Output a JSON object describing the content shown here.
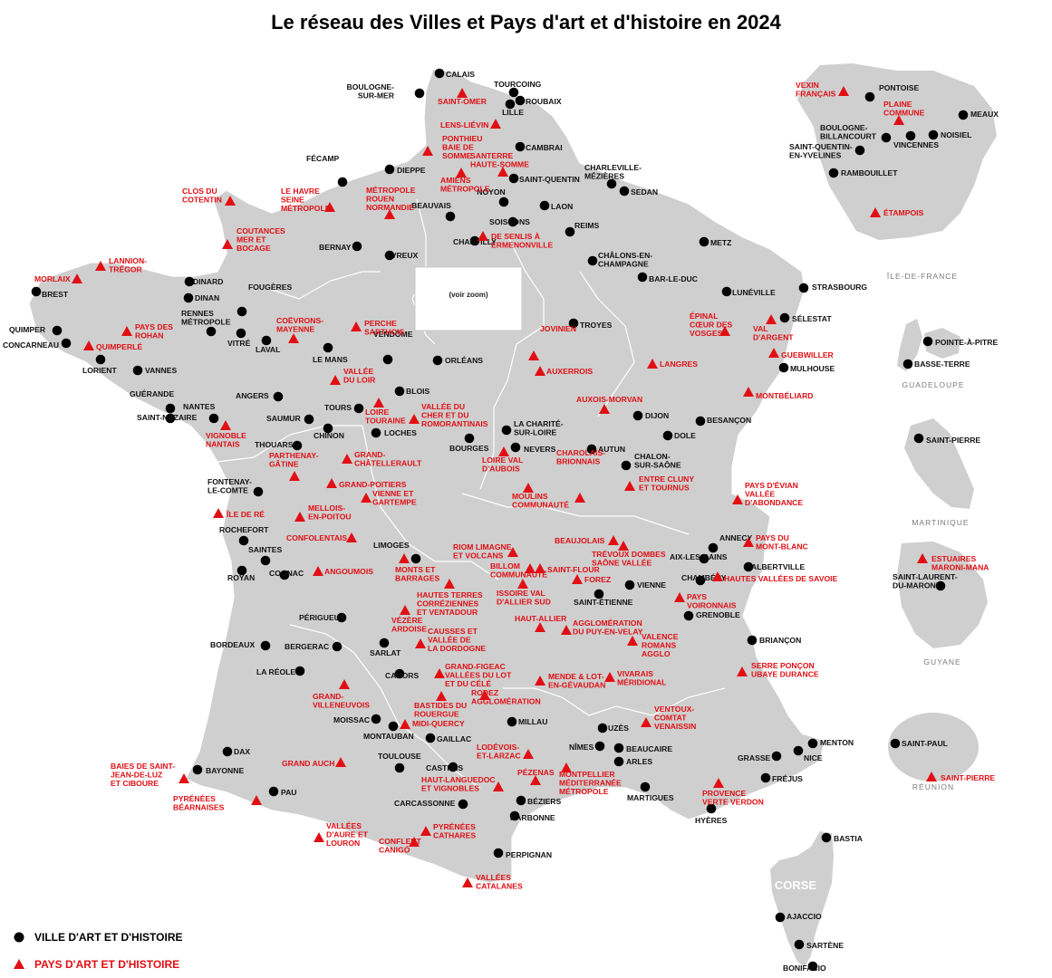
{
  "title": "Le réseau des Villes et Pays d'art et d'histoire en 2024",
  "colors": {
    "land": "#cfcfcf",
    "border": "#ffffff",
    "city": "#000000",
    "pays": "#e10f14",
    "water": "#ffffff"
  },
  "legend": {
    "city": "VILLE D'ART ET D'HISTOIRE",
    "pays": "PAYS D'ART ET D'HISTOIRE"
  },
  "zoom": {
    "title": "ÎLE-DE-FRANCE",
    "subtitle": "(voir zoom)"
  },
  "region_labels": {
    "idf": "ÎLE-DE-FRANCE",
    "guadeloupe": "GUADELOUPE",
    "martinique": "MARTINIQUE",
    "guyane": "GUYANE",
    "reunion": "RÉUNION",
    "corse": "CORSE"
  },
  "villes": [
    "CALAIS",
    "BOULOGNE-\nSUR-MER",
    "TOURCOING",
    "ROUBAIX",
    "LILLE",
    "CAMBRAI",
    "SAINT-QUENTIN",
    "CHARLEVILLE-\nMÉZIÈRES",
    "SEDAN",
    "FÉCAMP",
    "DIEPPE",
    "NOYON",
    "LAON",
    "BEAUVAIS",
    "SOISSONS",
    "REIMS",
    "CHANTILLY",
    "METZ",
    "BERNAY",
    "ÉVREUX",
    "CHÂLONS-EN-\nCHAMPAGNE",
    "BAR-LE-DUC",
    "STRASBOURG",
    "LUNÉVILLE",
    "DINARD",
    "BREST",
    "DINAN",
    "FOUGÈRES",
    "RENNES\nMÉTROPOLE",
    "QUIMPER",
    "CONCARNEAU",
    "VITRÉ",
    "LAVAL",
    "TROYES",
    "SÉLESTAT",
    "LORIENT",
    "VANNES",
    "LE MANS",
    "VENDÔME",
    "ORLÉANS",
    "MULHOUSE",
    "ANGERS",
    "GUÉRANDE",
    "SAINT-NAZAIRE",
    "NANTES",
    "SAUMUR",
    "TOURS",
    "BLOIS",
    "DIJON",
    "BESANÇON",
    "CHINON",
    "LOCHES",
    "LA CHARITÉ-\nSUR-LOIRE",
    "THOUARS",
    "BOURGES",
    "NEVERS",
    "DOLE",
    "AUTUN",
    "CHALON-\nSUR-SAÔNE",
    "FONTENAY-\nLE-COMTE",
    "ROCHEFORT",
    "SAINTES",
    "ROYAN",
    "COGNAC",
    "LIMOGES",
    "ANNECY",
    "AIX-LES-BAINS",
    "ALBERTVILLE",
    "CHAMBÉRY",
    "VIENNE",
    "SAINT-ÉTIENNE",
    "GRENOBLE",
    "PÉRIGUEUX",
    "BORDEAUX",
    "BERGERAC",
    "SARLAT",
    "BRIANÇON",
    "LA RÉOLE",
    "CAHORS",
    "MOISSAC",
    "MONTAUBAN",
    "MILLAU",
    "UZÈS",
    "GAILLAC",
    "DAX",
    "NÎMES",
    "BEAUCAIRE",
    "ARLES",
    "MENTON",
    "NICE",
    "GRASSE",
    "BAYONNE",
    "TOULOUSE",
    "CASTRES",
    "FRÉJUS",
    "PAU",
    "MARTIGUES",
    "BÉZIERS",
    "CARCASSONNE",
    "NARBONNE",
    "HYÈRES",
    "PERPIGNAN",
    "BASTIA",
    "AJACCIO",
    "SARTÈNE",
    "BONIFACIO",
    "PONTOISE",
    "MEAUX",
    "BOULOGNE-\nBILLANCOURT",
    "VINCENNES",
    "NOISIEL",
    "SAINT-QUENTIN-\nEN-YVELINES",
    "RAMBOUILLET",
    "POINTE-À-PITRE",
    "BASSE-TERRE",
    "SAINT-PIERRE",
    "SAINT-LAURENT-\nDU-MARONI",
    "SAINT-PAUL"
  ],
  "pays": [
    "SAINT-OMER",
    "LENS-LIÉVIN",
    "PONTHIEU\nBAIE DE\nSOMME",
    "SANTERRE\nHAUTE-SOMME",
    "AMIENS\nMÉTROPOLE",
    "MÉTROPOLE\nROUEN\nNORMANDIE",
    "LE HAVRE\nSEINE\nMÉTROPOLE",
    "CLOS DU\nCOTENTIN",
    "DE SENLIS À\nERMENONVILLE",
    "COUTANCES\nMER ET\nBOCAGE",
    "LANNION-\nTRÉGOR",
    "MORLAIX",
    "PAYS DES\nROHAN",
    "QUIMPERLÉ",
    "COËVRONS-\nMAYENNE",
    "PERCHE\nSARTHOIS",
    "ÉPINAL\nCŒUR DES\nVOSGES",
    "VAL\nD'ARGENT",
    "JOVINIEN",
    "AUXERROIS",
    "LANGRES",
    "GUEBWILLER",
    "VALLÉE\nDU LOIR",
    "MONTBÉLIARD",
    "AUXOIS-MORVAN",
    "LOIRE\nTOURAINE",
    "VALLÉE DU\nCHER ET DU\nROMORANTINAIS",
    "VIGNOBLE\nNANTAIS",
    "LOIRE VAL\nD'AUBOIS",
    "CHAROLAIS-\nBRIONNAIS",
    "PARTHENAY-\nGÂTINE",
    "GRAND-\nCHÂTELLERAULT",
    "ENTRE CLUNY\nET TOURNUS",
    "GRAND-POITIERS",
    "VIENNE ET\nGARTEMPE",
    "MOULINS\nCOMMUNAUTÉ",
    "PAYS D'ÉVIAN\nVALLÉE\nD'ABONDANCE",
    "ÎLE DE RÉ",
    "MELLOIS-\nEN-POITOU",
    "CONFOLENTAIS",
    "BEAUJOLAIS",
    "TRÉVOUX DOMBES\nSAÔNE VALLÉE",
    "PAYS DU\nMONT-BLANC",
    "RIOM LIMAGNE\nET VOLCANS",
    "BILLOM\nCOMMUNAUTÉ",
    "SAINT-FLOUR",
    "ANGOUMOIS",
    "MONTS ET\nBARRAGES",
    "FOREZ",
    "HAUTES VALLÉES DE SAVOIE",
    "HAUTES TERRES\nCORRÉZIENNES\nET VENTADOUR",
    "ISSOIRE VAL\nD'ALLIER SUD",
    "PAYS\nVOIRONNAIS",
    "VÉZÈRE\nARDOISE",
    "HAUT-ALLIER",
    "AGGLOMÉRATION\nDU PUY-EN-VELAY",
    "CAUSSES ET\nVALLÉE DE\nLA DORDOGNE",
    "VALENCE\nROMANS\nAGGLO",
    "GRAND-FIGEAC\nVALLÉES DU LOT\nET DU CÉLÉ",
    "SERRE PONÇON\nUBAYE DURANCE",
    "GRAND-\nVILLENEUVOIS",
    "MENDE & LOT-\nEN-GÉVAUDAN",
    "VIVARAIS\nMÉRIDIONAL",
    "RODEZ\nAGGLOMÉRATION",
    "BASTIDES DU\nROUERGUE",
    "MIDI-QUERCY",
    "VENTOUX-\nCOMTAT\nVENAISSIN",
    "LODÉVOIS-\nET-LARZAC",
    "GRAND AUCH",
    "BAIES DE SAINT-\nJEAN-DE-LUZ\nET CIBOURE",
    "PÉZENAS",
    "MONTPELLIER\nMÉDITERRANÉE\nMÉTROPOLE",
    "HAUT-LANGUEDOC\nET VIGNOBLES",
    "PROVENCE\nVERTE VERDON",
    "PYRÉNÉES\nBÉARNAISES",
    "VALLÉES\nD'AURE ET\nLOURON",
    "PYRÉNÉES\nCATHARES",
    "CONFLENT\nCANIGÓ",
    "VALLÉES\nCATALANES",
    "VEXIN\nFRANÇAIS",
    "PLAINE\nCOMMUNE",
    "ÉTAMPOIS",
    "ESTUAIRES\nMARONI-MANA",
    "SAINT-PIERRE"
  ]
}
